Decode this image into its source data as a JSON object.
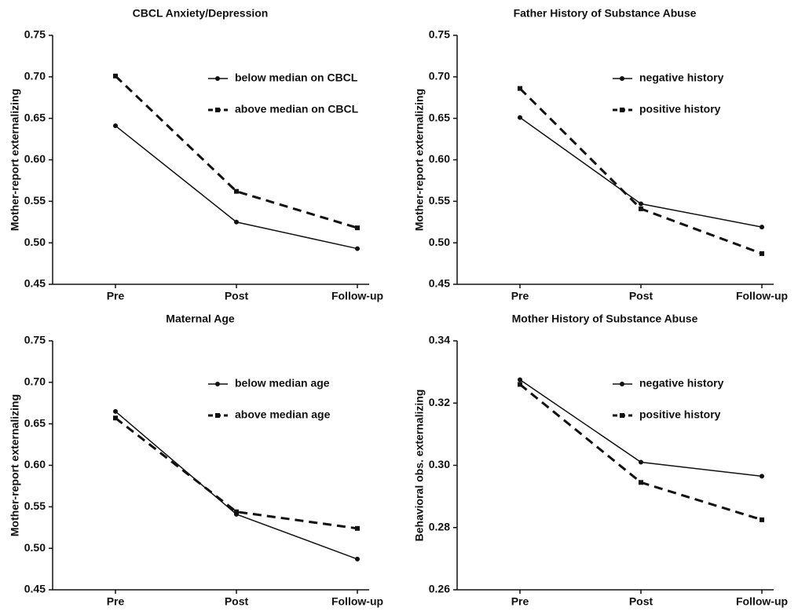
{
  "chart_data": [
    {
      "type": "line",
      "title": "CBCL Anxiety/Depression",
      "y_label": "Mother-report externalizing",
      "categories": [
        "Pre",
        "Post",
        "Follow-up"
      ],
      "series": [
        {
          "name": "below median on CBCL",
          "color": "#111111",
          "values": [
            0.641,
            0.525,
            0.493
          ]
        },
        {
          "name": "above median on CBCL",
          "color": "#111111",
          "values": [
            0.701,
            0.562,
            0.518
          ]
        }
      ],
      "ylim": [
        0.45,
        0.75
      ],
      "yticks": [
        0.45,
        {
          "value": 0.5,
          "label": "0.50"
        },
        0.55,
        {
          "value": 0.6,
          "label": "0.60"
        },
        0.65,
        {
          "value": 0.7,
          "label": "0.70"
        },
        0.75
      ]
    },
    {
      "type": "line",
      "title": "Father History of Substance Abuse",
      "y_label": "Mother-report externalizing",
      "categories": [
        "Pre",
        "Post",
        "Follow-up"
      ],
      "series": [
        {
          "name": "negative history",
          "color": "#111111",
          "values": [
            0.651,
            0.547,
            0.519
          ]
        },
        {
          "name": "positive history",
          "color": "#111111",
          "values": [
            0.686,
            0.541,
            0.487
          ]
        }
      ],
      "ylim": [
        0.45,
        0.75
      ],
      "yticks": [
        0.45,
        {
          "value": 0.5,
          "label": "0.50"
        },
        0.55,
        {
          "value": 0.6,
          "label": "0.60"
        },
        0.65,
        {
          "value": 0.7,
          "label": "0.70"
        },
        0.75
      ]
    },
    {
      "type": "line",
      "title": "Maternal Age",
      "y_label": "Mother-report externalizing",
      "categories": [
        "Pre",
        "Post",
        "Follow-up"
      ],
      "series": [
        {
          "name": "below median age",
          "color": "#111111",
          "values": [
            0.665,
            0.541,
            0.487
          ]
        },
        {
          "name": "above median age",
          "color": "#111111",
          "values": [
            0.657,
            0.544,
            0.524
          ]
        }
      ],
      "ylim": [
        0.45,
        0.75
      ],
      "yticks": [
        0.45,
        {
          "value": 0.5,
          "label": "0.50"
        },
        0.55,
        {
          "value": 0.6,
          "label": "0.60"
        },
        0.65,
        {
          "value": 0.7,
          "label": "0.70"
        },
        0.75
      ]
    },
    {
      "type": "line",
      "title": "Mother History of Substance Abuse",
      "y_label": "Behavioral obs. externalizing",
      "categories": [
        "Pre",
        "Post",
        "Follow-up"
      ],
      "series": [
        {
          "name": "negative history",
          "color": "#111111",
          "values": [
            0.3275,
            0.301,
            0.2965
          ]
        },
        {
          "name": "positive history",
          "color": "#111111",
          "values": [
            0.326,
            0.2945,
            0.2825
          ]
        }
      ],
      "ylim": [
        0.26,
        0.34
      ],
      "yticks": [
        0.26,
        0.28,
        {
          "value": 0.3,
          "label": "0.30"
        },
        0.32,
        0.34
      ]
    }
  ]
}
